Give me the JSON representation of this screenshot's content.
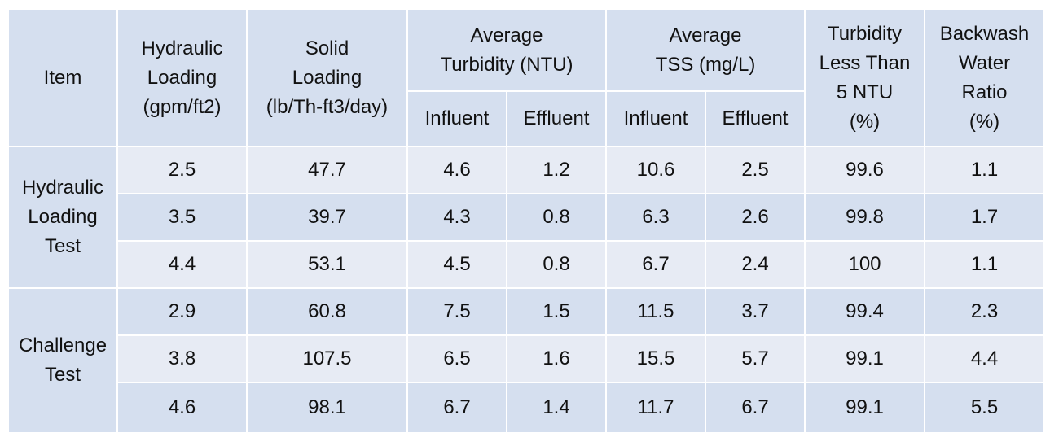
{
  "header": {
    "item": "Item",
    "hydraulic_loading": [
      "Hydraulic",
      "Loading",
      "(gpm/ft2)"
    ],
    "solid_loading": [
      "Solid",
      "Loading",
      "(lb/Th-ft3/day)"
    ],
    "avg_turbidity": [
      "Average",
      "Turbidity (NTU)"
    ],
    "avg_tss": [
      "Average",
      "TSS (mg/L)"
    ],
    "turbidity_lt5": [
      "Turbidity",
      "Less Than",
      "5 NTU",
      "(%)"
    ],
    "backwash": [
      "Backwash",
      "Water",
      "Ratio",
      "(%)"
    ],
    "influent": "Influent",
    "effluent": "Effluent"
  },
  "groups": [
    {
      "label": [
        "Hydraulic",
        "Loading",
        "Test"
      ],
      "rows": [
        [
          "2.5",
          "47.7",
          "4.6",
          "1.2",
          "10.6",
          "2.5",
          "99.6",
          "1.1"
        ],
        [
          "3.5",
          "39.7",
          "4.3",
          "0.8",
          "6.3",
          "2.6",
          "99.8",
          "1.7"
        ],
        [
          "4.4",
          "53.1",
          "4.5",
          "0.8",
          "6.7",
          "2.4",
          "100",
          "1.1"
        ]
      ]
    },
    {
      "label": [
        "Challenge",
        "Test"
      ],
      "rows": [
        [
          "2.9",
          "60.8",
          "7.5",
          "1.5",
          "11.5",
          "3.7",
          "99.4",
          "2.3"
        ],
        [
          "3.8",
          "107.5",
          "6.5",
          "1.6",
          "15.5",
          "5.7",
          "99.1",
          "4.4"
        ],
        [
          "4.6",
          "98.1",
          "6.7",
          "1.4",
          "11.7",
          "6.7",
          "99.1",
          "5.5"
        ]
      ]
    }
  ]
}
